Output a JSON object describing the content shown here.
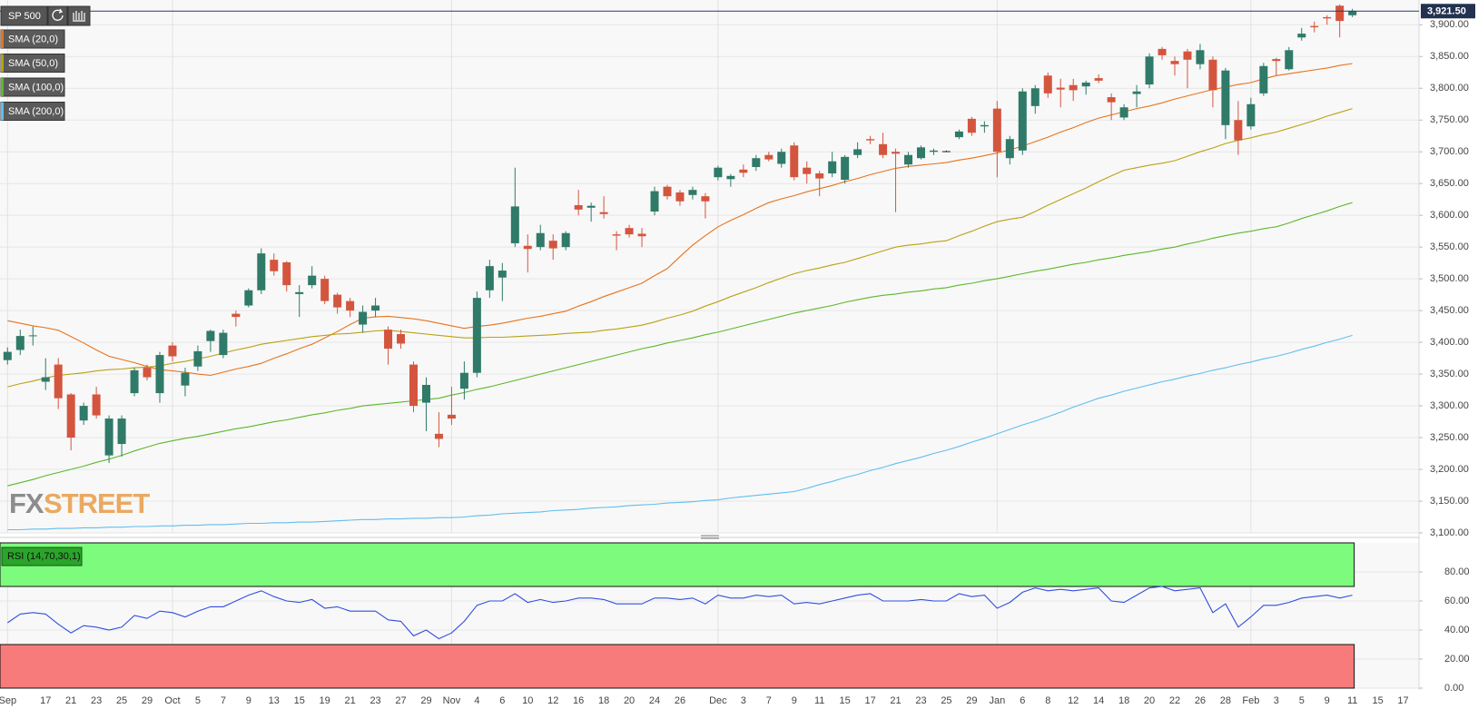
{
  "chart_data": {
    "type": "candlestick",
    "title": "SP 500",
    "categories": [
      "Sep",
      null,
      null,
      "17",
      null,
      "21",
      null,
      "23",
      null,
      "25",
      null,
      "29",
      null,
      "Oct",
      null,
      "5",
      null,
      "7",
      null,
      "9",
      null,
      "13",
      null,
      "15",
      null,
      "19",
      null,
      "21",
      null,
      "23",
      null,
      "27",
      null,
      "29",
      null,
      "Nov",
      null,
      "4",
      null,
      "6",
      null,
      "10",
      null,
      "12",
      null,
      "16",
      null,
      "18",
      null,
      "20",
      null,
      "24",
      null,
      "26",
      null,
      null,
      "Dec",
      null,
      "3",
      null,
      "7",
      null,
      "9",
      null,
      "11",
      null,
      "15",
      null,
      "17",
      null,
      "21",
      null,
      "23",
      null,
      "25",
      null,
      "29",
      null,
      "Jan",
      null,
      "6",
      null,
      "8",
      null,
      "12",
      null,
      "14",
      null,
      "18",
      null,
      "20",
      null,
      "22",
      null,
      "26",
      null,
      "28",
      null,
      "Feb",
      null,
      "3",
      null,
      "5",
      null,
      "9",
      null,
      "11",
      null,
      "15",
      null,
      "17"
    ],
    "open": [
      3372,
      3388,
      3410,
      3338,
      3365,
      3318,
      3277,
      3318,
      3222,
      3240,
      3320,
      3360,
      3320,
      3395,
      3332,
      3362,
      3402,
      3380,
      3445,
      3458,
      3482,
      3530,
      3526,
      3476,
      3490,
      3500,
      3475,
      3465,
      3428,
      3450,
      3420,
      3413,
      3365,
      3305,
      3256,
      3286,
      3327,
      3352,
      3482,
      3502,
      3556,
      3552,
      3550,
      3560,
      3550,
      3616,
      3612,
      3605,
      3570,
      3580,
      3571,
      3606,
      3645,
      3636,
      3632,
      3630,
      3660,
      3657,
      3672,
      3676,
      3695,
      3681,
      3710,
      3675,
      3666,
      3666,
      3656,
      3695,
      3720,
      3712,
      3700,
      3680,
      3690,
      3700,
      3701,
      3723,
      3752,
      3740,
      3768,
      3690,
      3702,
      3772,
      3820,
      3801,
      3805,
      3803,
      3816,
      3786,
      3754,
      3791,
      3806,
      3862,
      3843,
      3858,
      3838,
      3845,
      3742,
      3750,
      3740,
      3792,
      3846,
      3830,
      3880,
      3898,
      3912,
      3930,
      3915,
      null,
      null,
      null,
      null
    ],
    "high": [
      3392,
      3420,
      3425,
      3375,
      3375,
      3320,
      3305,
      3330,
      3285,
      3285,
      3360,
      3365,
      3385,
      3400,
      3360,
      3395,
      3420,
      3420,
      3450,
      3485,
      3548,
      3540,
      3528,
      3490,
      3520,
      3505,
      3478,
      3470,
      3458,
      3470,
      3425,
      3420,
      3370,
      3345,
      3290,
      3330,
      3370,
      3480,
      3530,
      3525,
      3675,
      3570,
      3585,
      3570,
      3575,
      3640,
      3620,
      3630,
      3575,
      3585,
      3580,
      3645,
      3648,
      3640,
      3645,
      3635,
      3678,
      3665,
      3680,
      3695,
      3700,
      3705,
      3715,
      3685,
      3670,
      3700,
      3695,
      3715,
      3725,
      3730,
      3705,
      3700,
      3710,
      3705,
      3702,
      3735,
      3755,
      3748,
      3780,
      3725,
      3800,
      3805,
      3825,
      3815,
      3815,
      3812,
      3822,
      3792,
      3775,
      3805,
      3855,
      3865,
      3850,
      3862,
      3870,
      3850,
      3832,
      3780,
      3785,
      3840,
      3848,
      3865,
      3895,
      3905,
      3915,
      3932,
      3925,
      null,
      null,
      null,
      null
    ],
    "low": [
      3365,
      3380,
      3395,
      3325,
      3295,
      3230,
      3270,
      3280,
      3210,
      3220,
      3315,
      3340,
      3305,
      3370,
      3315,
      3355,
      3385,
      3375,
      3425,
      3455,
      3476,
      3505,
      3480,
      3440,
      3485,
      3460,
      3445,
      3440,
      3415,
      3440,
      3365,
      3390,
      3290,
      3260,
      3235,
      3270,
      3310,
      3345,
      3470,
      3465,
      3550,
      3510,
      3545,
      3530,
      3545,
      3600,
      3590,
      3595,
      3545,
      3565,
      3550,
      3600,
      3625,
      3615,
      3625,
      3595,
      3655,
      3645,
      3660,
      3670,
      3685,
      3675,
      3655,
      3650,
      3630,
      3660,
      3650,
      3690,
      3712,
      3690,
      3605,
      3675,
      3688,
      3695,
      3700,
      3720,
      3725,
      3730,
      3660,
      3680,
      3695,
      3760,
      3785,
      3770,
      3780,
      3790,
      3808,
      3750,
      3750,
      3770,
      3800,
      3845,
      3820,
      3800,
      3830,
      3770,
      3720,
      3695,
      3735,
      3788,
      3820,
      3828,
      3875,
      3888,
      3900,
      3880,
      3912,
      null,
      null,
      null,
      null
    ],
    "close": [
      3385,
      3410,
      3411,
      3345,
      3312,
      3250,
      3300,
      3285,
      3280,
      3280,
      3356,
      3345,
      3380,
      3378,
      3352,
      3386,
      3418,
      3415,
      3440,
      3482,
      3540,
      3512,
      3490,
      3479,
      3505,
      3465,
      3455,
      3450,
      3448,
      3458,
      3390,
      3398,
      3300,
      3333,
      3248,
      3280,
      3352,
      3470,
      3520,
      3513,
      3614,
      3547,
      3572,
      3548,
      3572,
      3609,
      3615,
      3602,
      3568,
      3570,
      3567,
      3638,
      3630,
      3622,
      3640,
      3622,
      3675,
      3662,
      3667,
      3690,
      3688,
      3700,
      3660,
      3665,
      3658,
      3685,
      3692,
      3704,
      3718,
      3695,
      3697,
      3695,
      3707,
      3702,
      3701,
      3732,
      3730,
      3742,
      3700,
      3720,
      3795,
      3800,
      3792,
      3798,
      3797,
      3809,
      3812,
      3778,
      3770,
      3795,
      3850,
      3852,
      3838,
      3845,
      3860,
      3797,
      3828,
      3718,
      3775,
      3835,
      3843,
      3860,
      3886,
      3896,
      3910,
      3906,
      3921.5,
      null,
      null,
      null,
      null
    ],
    "up_color": "#2f7a68",
    "down_color": "#d4553e",
    "ylim": [
      3100,
      3939
    ],
    "yticks": [
      {
        "value": 3100,
        "label": "3,100.00"
      },
      {
        "value": 3150,
        "label": "3,150.00"
      },
      {
        "value": 3200,
        "label": "3,200.00"
      },
      {
        "value": 3250,
        "label": "3,250.00"
      },
      {
        "value": 3300,
        "label": "3,300.00"
      },
      {
        "value": 3350,
        "label": "3,350.00"
      },
      {
        "value": 3400,
        "label": "3,400.00"
      },
      {
        "value": 3450,
        "label": "3,450.00"
      },
      {
        "value": 3500,
        "label": "3,500.00"
      },
      {
        "value": 3550,
        "label": "3,550.00"
      },
      {
        "value": 3600,
        "label": "3,600.00"
      },
      {
        "value": 3650,
        "label": "3,650.00"
      },
      {
        "value": 3700,
        "label": "3,700.00"
      },
      {
        "value": 3750,
        "label": "3,750.00"
      },
      {
        "value": 3800,
        "label": "3,800.00"
      },
      {
        "value": 3850,
        "label": "3,850.00"
      },
      {
        "value": 3900,
        "label": "3,900.00"
      }
    ],
    "grid": true,
    "last_price": {
      "value": 3921.5,
      "label": "3,921.50"
    },
    "watermark": [
      "FX",
      "STREET"
    ],
    "overlays": [
      {
        "name": "SMA (20,0)",
        "color": "#e8731c",
        "values": [
          3434,
          3430,
          3426,
          3423,
          3419,
          3409,
          3399,
          3388,
          3378,
          3373,
          3368,
          3362,
          3357,
          3355,
          3353,
          3350,
          3348,
          3353,
          3358,
          3362,
          3367,
          3375,
          3382,
          3390,
          3397,
          3407,
          3417,
          3428,
          3438,
          3440,
          3441,
          3439,
          3437,
          3434,
          3430,
          3426,
          3422,
          3425,
          3427,
          3430,
          3434,
          3438,
          3441,
          3445,
          3449,
          3457,
          3464,
          3472,
          3479,
          3486,
          3493,
          3505,
          3516,
          3535,
          3553,
          3568,
          3582,
          3592,
          3601,
          3611,
          3620,
          3626,
          3631,
          3637,
          3642,
          3647,
          3653,
          3658,
          3664,
          3669,
          3674,
          3677,
          3679,
          3681,
          3683,
          3687,
          3690,
          3694,
          3698,
          3703,
          3709,
          3716,
          3723,
          3731,
          3738,
          3746,
          3753,
          3758,
          3763,
          3768,
          3772,
          3777,
          3783,
          3788,
          3793,
          3798,
          3802,
          3806,
          3809,
          3815,
          3820,
          3823,
          3826,
          3829,
          3832,
          3836,
          3839,
          null,
          null,
          null,
          null
        ]
      },
      {
        "name": "SMA (50,0)",
        "color": "#b8a214",
        "values": [
          3330,
          3335,
          3339,
          3344,
          3348,
          3350,
          3352,
          3355,
          3357,
          3358,
          3360,
          3361,
          3363,
          3367,
          3370,
          3374,
          3378,
          3383,
          3388,
          3392,
          3397,
          3400,
          3403,
          3406,
          3409,
          3411,
          3413,
          3414,
          3416,
          3418,
          3419,
          3417,
          3415,
          3413,
          3411,
          3409,
          3407,
          3407,
          3408,
          3408,
          3409,
          3410,
          3411,
          3412,
          3414,
          3415,
          3416,
          3419,
          3421,
          3424,
          3427,
          3432,
          3438,
          3443,
          3449,
          3457,
          3464,
          3472,
          3479,
          3486,
          3494,
          3501,
          3508,
          3513,
          3517,
          3522,
          3526,
          3532,
          3538,
          3544,
          3550,
          3553,
          3555,
          3558,
          3560,
          3568,
          3575,
          3583,
          3590,
          3594,
          3597,
          3606,
          3616,
          3625,
          3634,
          3643,
          3653,
          3662,
          3671,
          3675,
          3679,
          3682,
          3686,
          3693,
          3700,
          3706,
          3713,
          3718,
          3722,
          3727,
          3731,
          3737,
          3743,
          3749,
          3756,
          3762,
          3768,
          null,
          null,
          null,
          null
        ]
      },
      {
        "name": "SMA (100,0)",
        "color": "#5cb82c",
        "values": [
          3174,
          3179,
          3184,
          3190,
          3195,
          3200,
          3205,
          3211,
          3216,
          3222,
          3229,
          3235,
          3241,
          3245,
          3249,
          3252,
          3256,
          3260,
          3264,
          3267,
          3271,
          3275,
          3278,
          3282,
          3286,
          3289,
          3293,
          3296,
          3300,
          3302,
          3304,
          3306,
          3308,
          3310,
          3312,
          3317,
          3321,
          3326,
          3330,
          3335,
          3340,
          3345,
          3350,
          3355,
          3360,
          3365,
          3370,
          3375,
          3380,
          3385,
          3390,
          3394,
          3399,
          3403,
          3407,
          3412,
          3416,
          3421,
          3426,
          3431,
          3436,
          3441,
          3446,
          3450,
          3454,
          3458,
          3463,
          3467,
          3471,
          3474,
          3476,
          3479,
          3481,
          3484,
          3486,
          3490,
          3493,
          3497,
          3500,
          3504,
          3508,
          3512,
          3515,
          3519,
          3523,
          3526,
          3530,
          3533,
          3537,
          3540,
          3543,
          3547,
          3550,
          3555,
          3559,
          3564,
          3568,
          3572,
          3575,
          3579,
          3582,
          3588,
          3595,
          3601,
          3607,
          3614,
          3620,
          null,
          null,
          null,
          null
        ]
      },
      {
        "name": "SMA (200,0)",
        "color": "#62bdee",
        "values": [
          3105,
          3105,
          3106,
          3106,
          3107,
          3107,
          3108,
          3108,
          3109,
          3109,
          3110,
          3110,
          3111,
          3111,
          3112,
          3112,
          3113,
          3113,
          3114,
          3115,
          3115,
          3116,
          3116,
          3117,
          3117,
          3118,
          3119,
          3120,
          3121,
          3121,
          3122,
          3122,
          3123,
          3123,
          3124,
          3124,
          3125,
          3127,
          3128,
          3130,
          3131,
          3132,
          3133,
          3135,
          3136,
          3137,
          3139,
          3140,
          3141,
          3143,
          3144,
          3145,
          3147,
          3148,
          3149,
          3151,
          3152,
          3155,
          3157,
          3159,
          3161,
          3163,
          3165,
          3170,
          3176,
          3181,
          3187,
          3192,
          3198,
          3203,
          3209,
          3214,
          3219,
          3225,
          3230,
          3236,
          3243,
          3249,
          3256,
          3263,
          3270,
          3276,
          3283,
          3290,
          3298,
          3305,
          3312,
          3317,
          3323,
          3328,
          3333,
          3338,
          3342,
          3347,
          3351,
          3356,
          3360,
          3365,
          3369,
          3374,
          3378,
          3383,
          3389,
          3394,
          3400,
          3405,
          3411,
          null,
          null,
          null,
          null
        ]
      }
    ],
    "rsi": {
      "type": "line",
      "name": "RSI (14,70,30,1)",
      "color": "#2f4fe0",
      "values": [
        45,
        51,
        52,
        51,
        44,
        38,
        43,
        42,
        40,
        42,
        50,
        48,
        53,
        52,
        49,
        53,
        56,
        56,
        60,
        64,
        67,
        63,
        60,
        59,
        61,
        55,
        56,
        53,
        53,
        53,
        47,
        46,
        36,
        40,
        34,
        38,
        46,
        57,
        60,
        60,
        65,
        59,
        61,
        59,
        60,
        62,
        62,
        61,
        58,
        58,
        58,
        62,
        62,
        61,
        62,
        58,
        64,
        62,
        62,
        64,
        63,
        64,
        58,
        59,
        58,
        60,
        62,
        64,
        65,
        60,
        60,
        60,
        61,
        60,
        60,
        65,
        63,
        64,
        55,
        59,
        66,
        69,
        67,
        68,
        67,
        68,
        69,
        60,
        59,
        64,
        69,
        70,
        67,
        68,
        69,
        52,
        58,
        42,
        49,
        57,
        57,
        59,
        62,
        63,
        64,
        62,
        64,
        null,
        null,
        null,
        null
      ],
      "ylim": [
        0,
        100
      ],
      "yticks": [
        {
          "value": 0,
          "label": "0.00"
        },
        {
          "value": 20,
          "label": "20.00"
        },
        {
          "value": 40,
          "label": "40.00"
        },
        {
          "value": 60,
          "label": "60.00"
        },
        {
          "value": 80,
          "label": "80.00"
        }
      ],
      "overbought": 70,
      "oversold": 30,
      "overbought_color": "#7dfb7d",
      "oversold_color": "#f87b7b"
    }
  }
}
